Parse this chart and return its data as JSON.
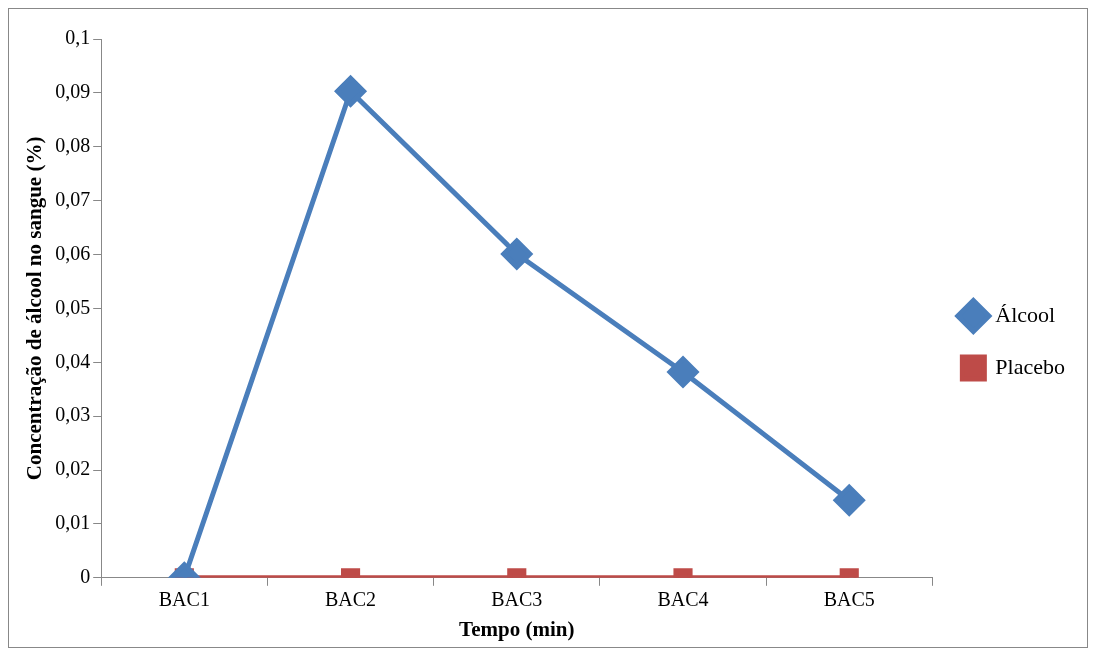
{
  "chart_data": {
    "type": "line",
    "xlabel": "Tempo (min)",
    "ylabel": "Concentração de álcool no sangue (%)",
    "categories": [
      "BAC1",
      "BAC2",
      "BAC3",
      "BAC4",
      "BAC5"
    ],
    "series": [
      {
        "name": "Álcool",
        "color": "#4a7ebb",
        "marker": "diamond",
        "values": [
          0,
          0.0903,
          0.0601,
          0.0382,
          0.0144
        ]
      },
      {
        "name": "Placebo",
        "color": "#be4b48",
        "marker": "square",
        "values": [
          0,
          0,
          0,
          0,
          0
        ]
      }
    ],
    "ylim": [
      0,
      0.1
    ],
    "yticks": [
      {
        "value": 0,
        "label": "0"
      },
      {
        "value": 0.01,
        "label": "0,01"
      },
      {
        "value": 0.02,
        "label": "0,02"
      },
      {
        "value": 0.03,
        "label": "0,03"
      },
      {
        "value": 0.04,
        "label": "0,04"
      },
      {
        "value": 0.05,
        "label": "0,05"
      },
      {
        "value": 0.06,
        "label": "0,06"
      },
      {
        "value": 0.07,
        "label": "0,07"
      },
      {
        "value": 0.08,
        "label": "0,08"
      },
      {
        "value": 0.09,
        "label": "0,09"
      },
      {
        "value": 0.1,
        "label": "0,1"
      }
    ],
    "grid": false,
    "legend": "right",
    "line_style": "solid"
  }
}
